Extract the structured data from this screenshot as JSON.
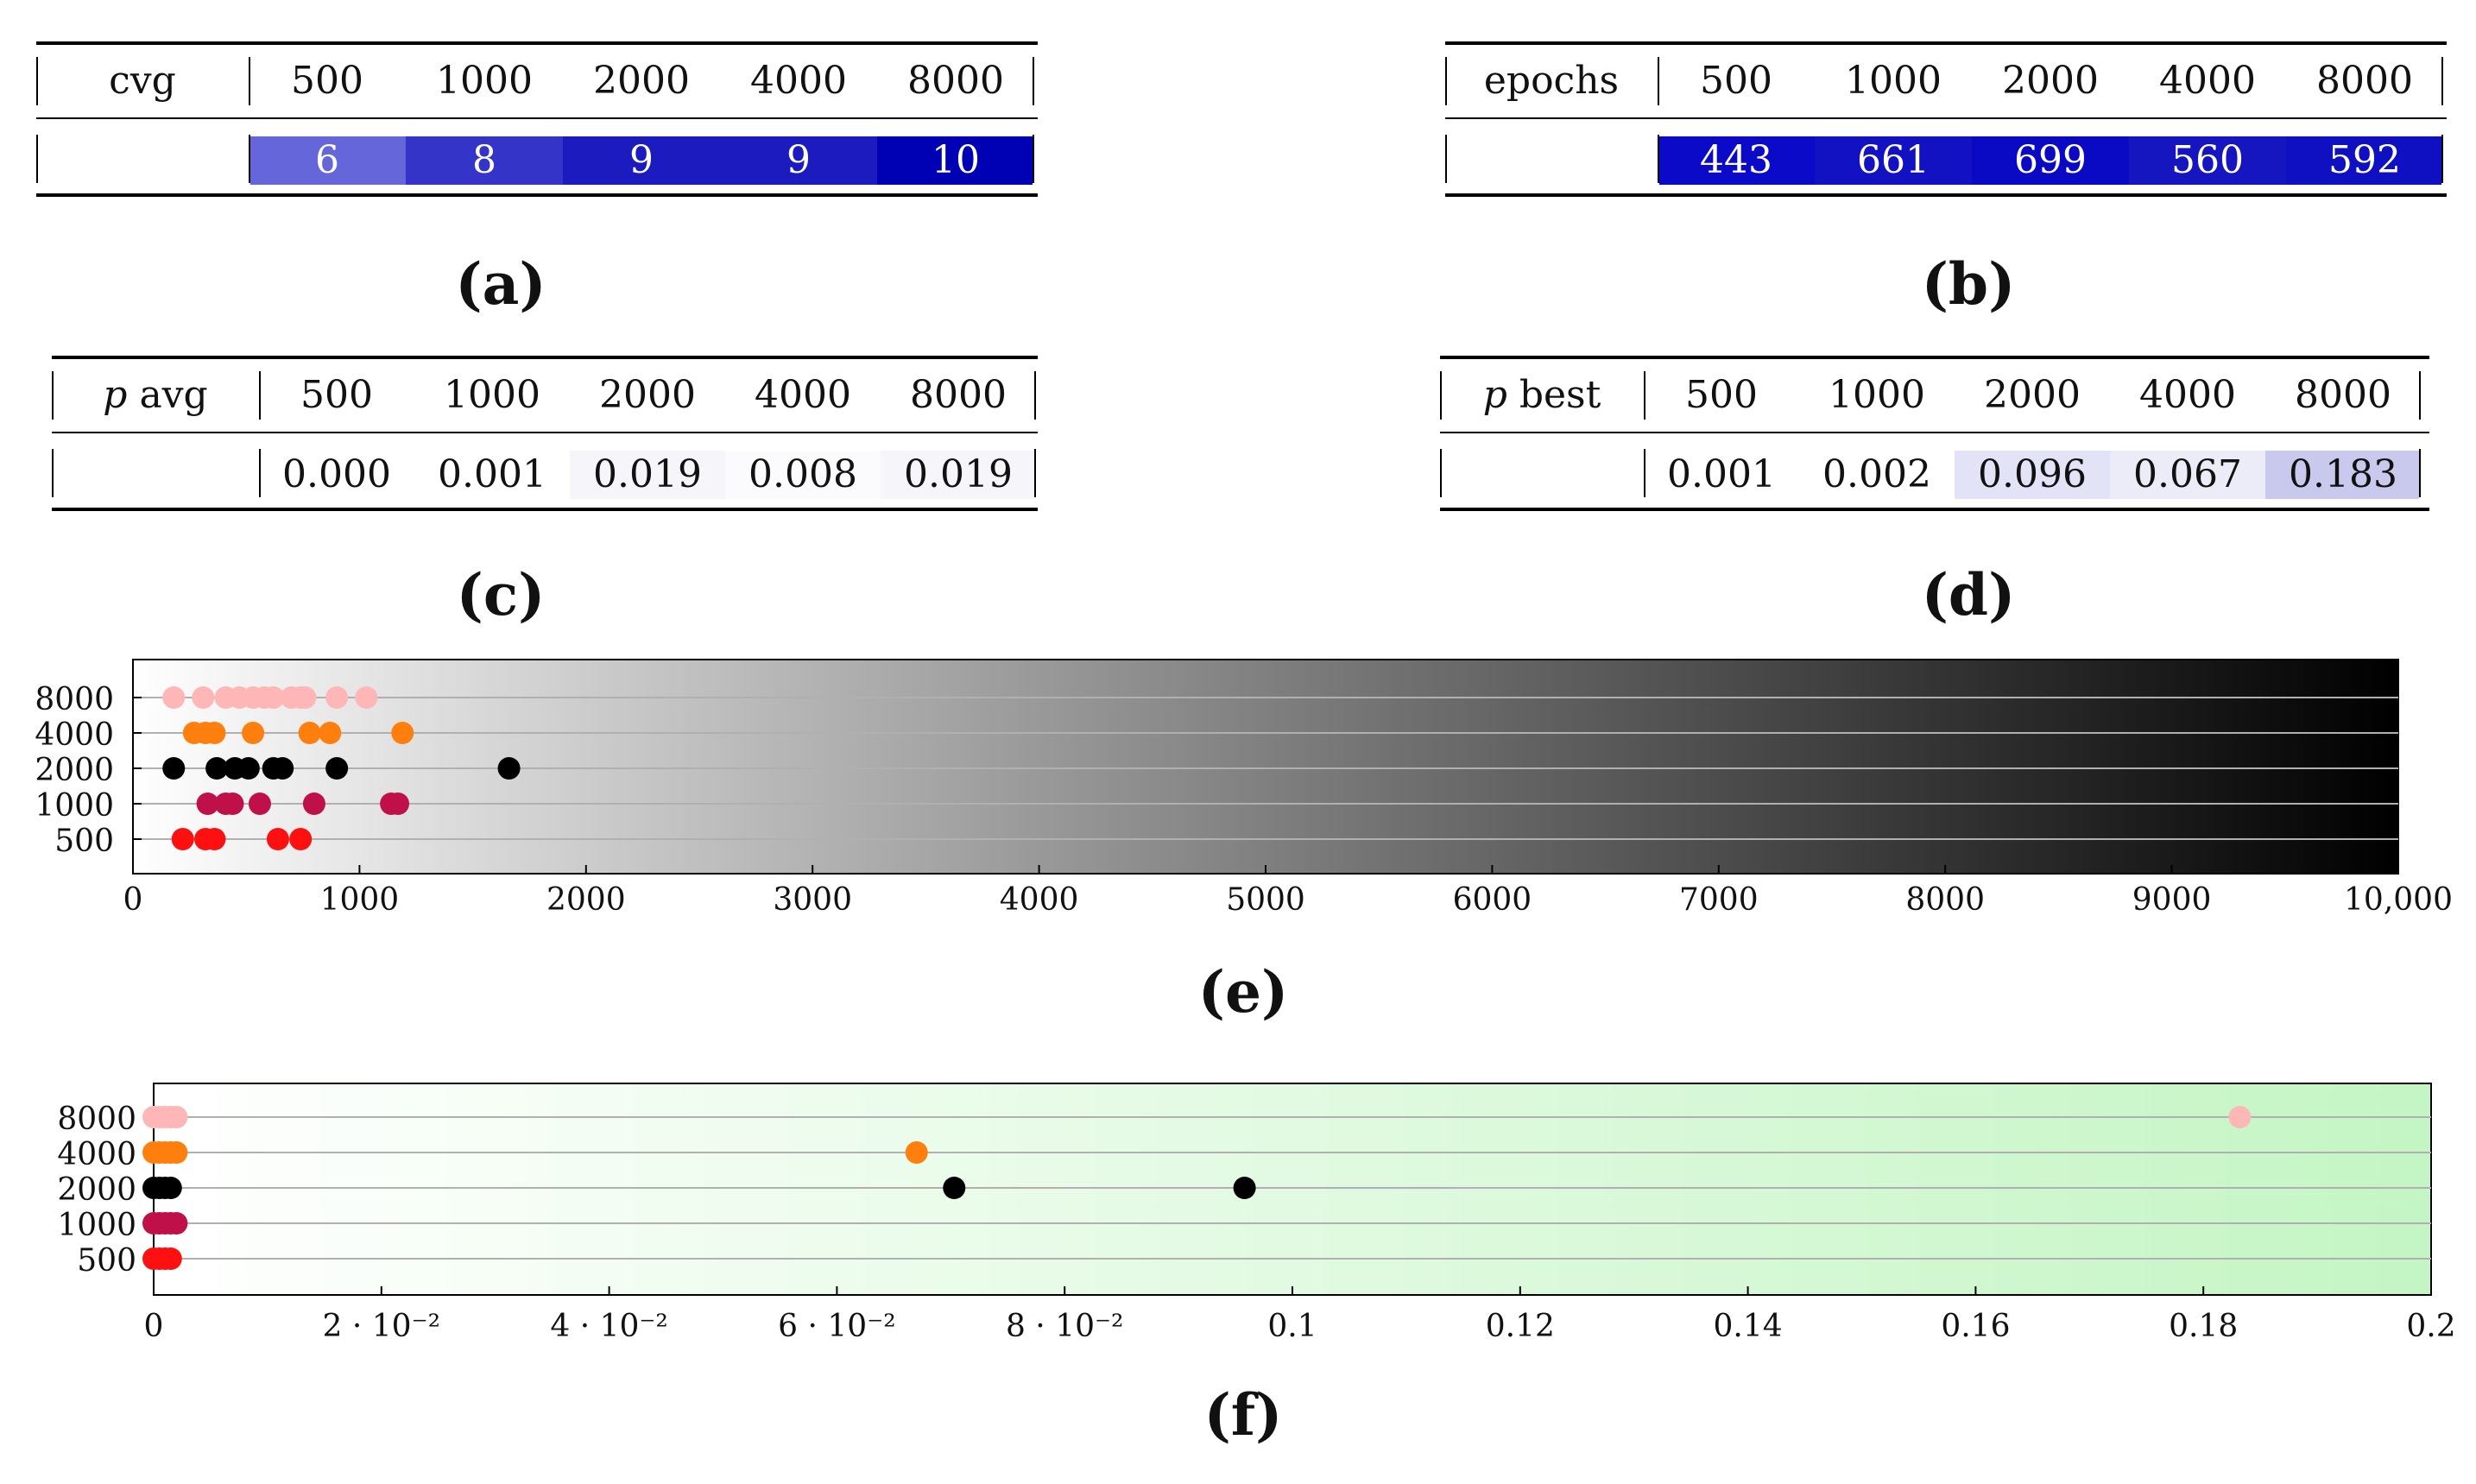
{
  "tables": [
    {
      "id": "a",
      "label": "cvg",
      "columns": [
        "500",
        "1000",
        "2000",
        "4000",
        "8000"
      ],
      "values": [
        "6",
        "8",
        "9",
        "9",
        "10"
      ],
      "cell_colors": [
        "#6666db",
        "#3434c8",
        "#1b1bbf",
        "#1b1bbf",
        "#0000b5"
      ],
      "text_color": "#ffffff",
      "caption": "(a)"
    },
    {
      "id": "b",
      "label": "epochs",
      "columns": [
        "500",
        "1000",
        "2000",
        "4000",
        "8000"
      ],
      "values": [
        "443",
        "661",
        "699",
        "560",
        "592"
      ],
      "cell_colors": [
        "#0a0ac8",
        "#1212c2",
        "#0a0ac4",
        "#1616c0",
        "#1010c3"
      ],
      "text_color": "#ffffff",
      "caption": "(b)"
    },
    {
      "id": "c",
      "label_italic": "p",
      "label": " avg",
      "columns": [
        "500",
        "1000",
        "2000",
        "4000",
        "8000"
      ],
      "values": [
        "0.000",
        "0.001",
        "0.019",
        "0.008",
        "0.019"
      ],
      "cell_colors": [
        "#ffffff",
        "#ffffff",
        "#f6f6fa",
        "#fbfbfd",
        "#f6f6fa"
      ],
      "text_color": "#111111",
      "caption": "(c)"
    },
    {
      "id": "d",
      "label_italic": "p",
      "label": " best",
      "columns": [
        "500",
        "1000",
        "2000",
        "4000",
        "8000"
      ],
      "values": [
        "0.001",
        "0.002",
        "0.096",
        "0.067",
        "0.183"
      ],
      "cell_colors": [
        "#ffffff",
        "#ffffff",
        "#e3e3f7",
        "#ececf9",
        "#c9c9ee"
      ],
      "text_color": "#111111",
      "caption": "(d)"
    }
  ],
  "chart_data": [
    {
      "id": "e",
      "type": "scatter",
      "caption": "(e)",
      "xlim": [
        0,
        10000
      ],
      "xticks": [
        0,
        1000,
        2000,
        3000,
        4000,
        5000,
        6000,
        7000,
        8000,
        9000,
        10000
      ],
      "xtick_labels": [
        "0",
        "1000",
        "2000",
        "3000",
        "4000",
        "5000",
        "6000",
        "7000",
        "8000",
        "9000",
        "10,000"
      ],
      "categories": [
        "500",
        "1000",
        "2000",
        "4000",
        "8000"
      ],
      "background": "gradient white to black",
      "series": [
        {
          "name": "500",
          "color": "#ff1010",
          "x": [
            220,
            320,
            360,
            640,
            740
          ]
        },
        {
          "name": "1000",
          "color": "#c0104a",
          "x": [
            330,
            410,
            440,
            560,
            800,
            1140,
            1170
          ]
        },
        {
          "name": "2000",
          "color": "#000000",
          "x": [
            180,
            370,
            450,
            510,
            620,
            660,
            900,
            1660
          ]
        },
        {
          "name": "4000",
          "color": "#ff7f0e",
          "x": [
            270,
            320,
            360,
            530,
            780,
            870,
            1190
          ]
        },
        {
          "name": "8000",
          "color": "#ffb6b6",
          "x": [
            180,
            310,
            410,
            470,
            530,
            580,
            620,
            700,
            740,
            760,
            900,
            1030
          ]
        }
      ]
    },
    {
      "id": "f",
      "type": "scatter",
      "caption": "(f)",
      "xlim": [
        0,
        0.2
      ],
      "xticks": [
        0,
        0.02,
        0.04,
        0.06,
        0.08,
        0.1,
        0.12,
        0.14,
        0.16,
        0.18,
        0.2
      ],
      "xtick_labels": [
        "0",
        "2 · 10⁻²",
        "4 · 10⁻²",
        "6 · 10⁻²",
        "8 · 10⁻²",
        "0.1",
        "0.12",
        "0.14",
        "0.16",
        "0.18",
        "0.2"
      ],
      "categories": [
        "500",
        "1000",
        "2000",
        "4000",
        "8000"
      ],
      "background": "gradient white to light green",
      "series": [
        {
          "name": "500",
          "color": "#ff1010",
          "x": [
            0,
            0.0005,
            0.001,
            0.0015
          ]
        },
        {
          "name": "1000",
          "color": "#c0104a",
          "x": [
            0,
            0.0005,
            0.001,
            0.0015,
            0.002
          ]
        },
        {
          "name": "2000",
          "color": "#000000",
          "x": [
            0,
            0.0005,
            0.001,
            0.0015,
            0.0703,
            0.0958
          ]
        },
        {
          "name": "4000",
          "color": "#ff7f0e",
          "x": [
            0,
            0.0005,
            0.001,
            0.0015,
            0.002,
            0.067
          ]
        },
        {
          "name": "8000",
          "color": "#ffb6b6",
          "x": [
            0,
            0.0005,
            0.001,
            0.0015,
            0.002,
            0.1832
          ]
        }
      ]
    }
  ]
}
